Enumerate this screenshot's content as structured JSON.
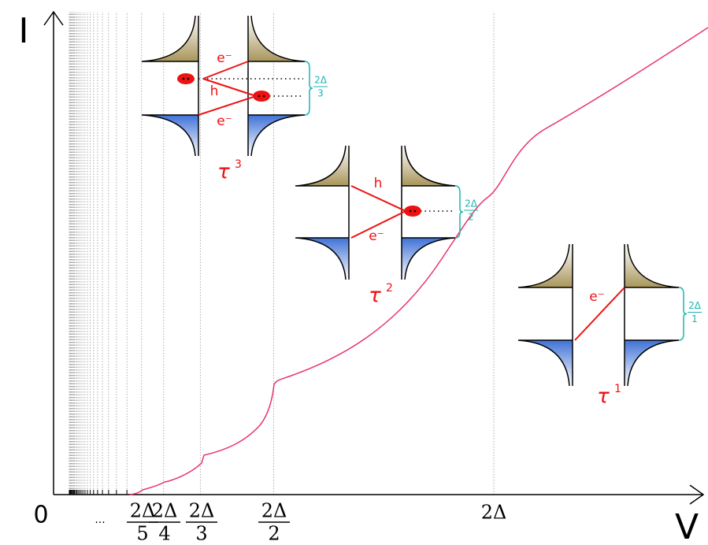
{
  "axes": {
    "y_label": "I",
    "x_label": "V",
    "origin": "0",
    "ellipsis": "..."
  },
  "ticks": [
    {
      "numerator": "2Δ",
      "denominator": "5"
    },
    {
      "numerator": "2Δ",
      "denominator": "4"
    },
    {
      "numerator": "2Δ",
      "denominator": "3"
    },
    {
      "numerator": "2Δ",
      "denominator": "2"
    }
  ],
  "tick_full": "2Δ",
  "insets": [
    {
      "label": {
        "symbol": "τ",
        "power": "3"
      },
      "gap": {
        "numerator": "2Δ",
        "denominator": "3"
      },
      "particles": [
        "e⁻",
        "h",
        "e⁻"
      ]
    },
    {
      "label": {
        "symbol": "τ",
        "power": "2"
      },
      "gap": {
        "numerator": "2Δ",
        "denominator": "2"
      },
      "particles": [
        "h",
        "e⁻"
      ]
    },
    {
      "label": {
        "symbol": "τ",
        "power": "1"
      },
      "gap": {
        "numerator": "2Δ",
        "denominator": "1"
      },
      "particles": [
        "e⁻"
      ]
    }
  ]
}
